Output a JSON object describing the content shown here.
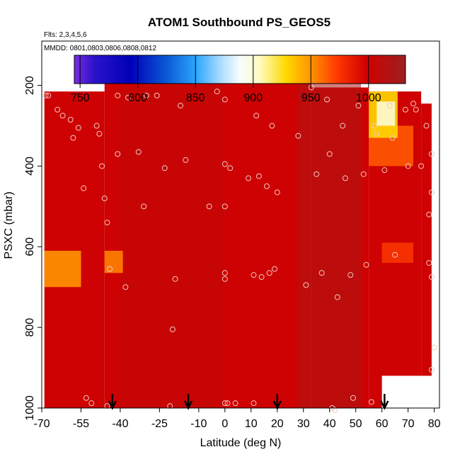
{
  "chart_data": {
    "type": "heatmap",
    "title": "ATOM1 Southbound PS_GEOS5",
    "notes": [
      "Flts: 2,3,4,5,6",
      "MMDD: 0801,0803,0806,0808,0812"
    ],
    "xlabel": "Latitude (deg N)",
    "ylabel": "PSXC (mbar)",
    "xlim": [
      -70,
      82
    ],
    "ylim": [
      1000,
      90
    ],
    "y_reversed": true,
    "x_ticks": [
      "-70",
      "-55",
      "-40",
      "-25",
      "-10",
      "0",
      "10",
      "20",
      "30",
      "40",
      "50",
      "60",
      "70",
      "80"
    ],
    "y_ticks": [
      "200",
      "400",
      "600",
      "800",
      "1000"
    ],
    "colorbar": {
      "ticks": [
        "750",
        "800",
        "850",
        "900",
        "950",
        "1000"
      ],
      "range": [
        745,
        1032
      ],
      "placement": "top"
    },
    "background_value": 1000,
    "regions": [
      {
        "lat": [
          -69,
          -55
        ],
        "p": [
          610,
          700
        ],
        "value": 950
      },
      {
        "lat": [
          -46,
          -39
        ],
        "p": [
          610,
          665
        ],
        "value": 955
      },
      {
        "lat": [
          55,
          66
        ],
        "p": [
          215,
          330
        ],
        "value": 930
      },
      {
        "lat": [
          58,
          65
        ],
        "p": [
          240,
          300
        ],
        "value": 900
      },
      {
        "lat": [
          55,
          72
        ],
        "p": [
          300,
          400
        ],
        "value": 965
      },
      {
        "lat": [
          60,
          72
        ],
        "p": [
          590,
          640
        ],
        "value": 975
      },
      {
        "lat": [
          28,
          52
        ],
        "p": [
          170,
          1000
        ],
        "value": 1020
      },
      {
        "lat": [
          -40,
          0
        ],
        "p": [
          170,
          1000
        ],
        "value": 1008
      }
    ],
    "points": [
      [
        -68.5,
        225
      ],
      [
        -67.5,
        225
      ],
      [
        -64,
        260
      ],
      [
        -62,
        275
      ],
      [
        -59,
        285
      ],
      [
        -58,
        330
      ],
      [
        -56,
        305
      ],
      [
        -54,
        455
      ],
      [
        -53,
        975
      ],
      [
        -51,
        988
      ],
      [
        -49,
        300
      ],
      [
        -48,
        320
      ],
      [
        -47,
        400
      ],
      [
        -46,
        480
      ],
      [
        -45,
        540
      ],
      [
        -44,
        655
      ],
      [
        -45,
        995
      ],
      [
        -41,
        225
      ],
      [
        -41,
        370
      ],
      [
        -38,
        700
      ],
      [
        -37,
        230
      ],
      [
        -33,
        365
      ],
      [
        -31,
        500
      ],
      [
        -30,
        225
      ],
      [
        -26,
        225
      ],
      [
        -23,
        405
      ],
      [
        -21,
        995
      ],
      [
        -20,
        805
      ],
      [
        -19,
        680
      ],
      [
        -17,
        250
      ],
      [
        -15,
        385
      ],
      [
        -6,
        500
      ],
      [
        -3,
        215
      ],
      [
        0,
        235
      ],
      [
        0,
        395
      ],
      [
        0,
        500
      ],
      [
        0,
        665
      ],
      [
        0,
        680
      ],
      [
        0,
        988
      ],
      [
        1,
        988
      ],
      [
        2,
        405
      ],
      [
        4,
        988
      ],
      [
        9,
        430
      ],
      [
        11,
        988
      ],
      [
        11,
        670
      ],
      [
        12,
        275
      ],
      [
        13,
        425
      ],
      [
        14,
        675
      ],
      [
        16,
        450
      ],
      [
        17,
        665
      ],
      [
        18,
        300
      ],
      [
        19,
        655
      ],
      [
        20,
        465
      ],
      [
        27,
        180
      ],
      [
        28,
        325
      ],
      [
        31,
        695
      ],
      [
        33,
        205
      ],
      [
        35,
        420
      ],
      [
        37,
        665
      ],
      [
        39,
        235
      ],
      [
        40,
        370
      ],
      [
        41,
        1000
      ],
      [
        42,
        1005
      ],
      [
        43,
        725
      ],
      [
        45,
        300
      ],
      [
        46,
        430
      ],
      [
        48,
        670
      ],
      [
        49,
        975
      ],
      [
        51,
        250
      ],
      [
        53,
        420
      ],
      [
        54,
        645
      ],
      [
        56,
        985
      ],
      [
        57,
        300
      ],
      [
        58,
        320
      ],
      [
        61,
        410
      ],
      [
        63,
        250
      ],
      [
        64,
        330
      ],
      [
        65,
        620
      ],
      [
        69,
        260
      ],
      [
        70,
        400
      ],
      [
        72,
        245
      ],
      [
        73,
        260
      ],
      [
        75,
        400
      ],
      [
        77,
        300
      ],
      [
        78,
        520
      ],
      [
        79,
        370
      ],
      [
        78,
        640
      ],
      [
        79,
        675
      ],
      [
        79,
        465
      ],
      [
        80,
        850
      ],
      [
        79,
        905
      ]
    ],
    "arrows_lat": [
      -43,
      -14,
      20,
      61
    ]
  }
}
